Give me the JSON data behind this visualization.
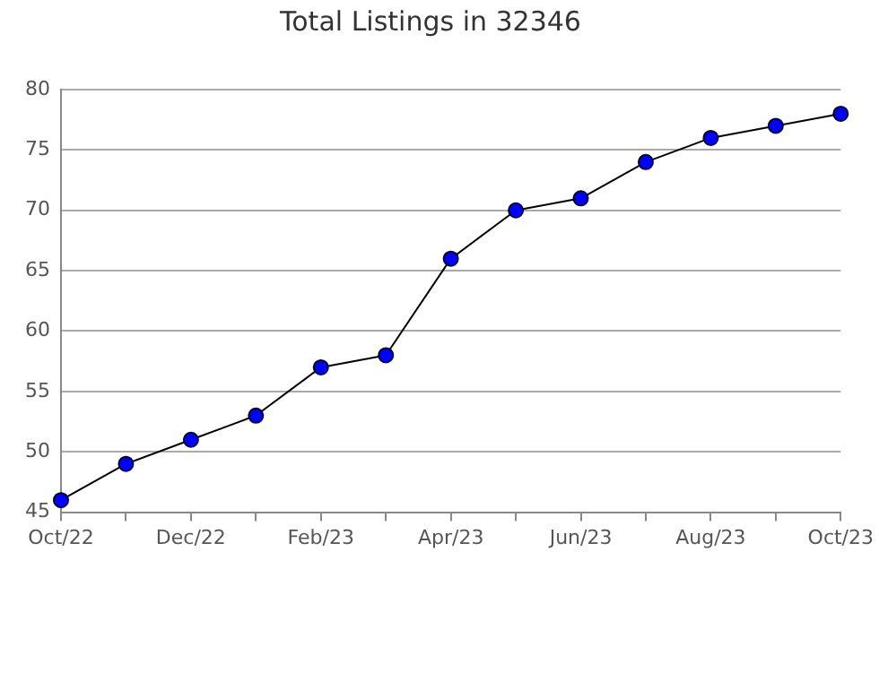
{
  "chart_data": {
    "type": "line",
    "title": "Total Listings in 32346",
    "categories": [
      "Oct/22",
      null,
      "Dec/22",
      null,
      "Feb/23",
      null,
      "Apr/23",
      null,
      "Jun/23",
      null,
      "Aug/23",
      null,
      "Oct/23"
    ],
    "series": [
      {
        "color": "#0000ff",
        "values": [
          46,
          49,
          51,
          53,
          57,
          58,
          66,
          70,
          71,
          74,
          76,
          77,
          78
        ]
      }
    ],
    "ylim": [
      45,
      80
    ],
    "yticks": [
      45,
      50,
      55,
      60,
      65,
      70,
      75,
      80
    ],
    "grid": "y",
    "legend": false,
    "marker": "circle",
    "line_style": "solid"
  }
}
